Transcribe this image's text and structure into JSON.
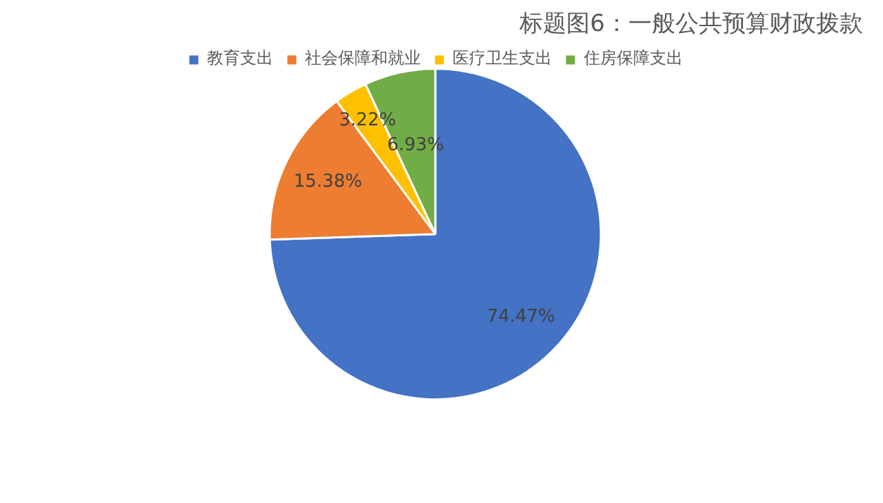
{
  "chart_data": {
    "type": "pie",
    "title": "标题图6：一般公共预算财政拨款",
    "categories": [
      "教育支出",
      "社会保障和就业",
      "医疗卫生支出",
      "住房保障支出"
    ],
    "values": [
      74.47,
      15.38,
      3.22,
      6.93
    ],
    "colors": [
      "#4472c4",
      "#ed7d31",
      "#ffc000",
      "#70ad47"
    ],
    "value_labels": [
      "74.47%",
      "15.38%",
      "3.22%",
      "6.93%"
    ],
    "legend": "top"
  }
}
